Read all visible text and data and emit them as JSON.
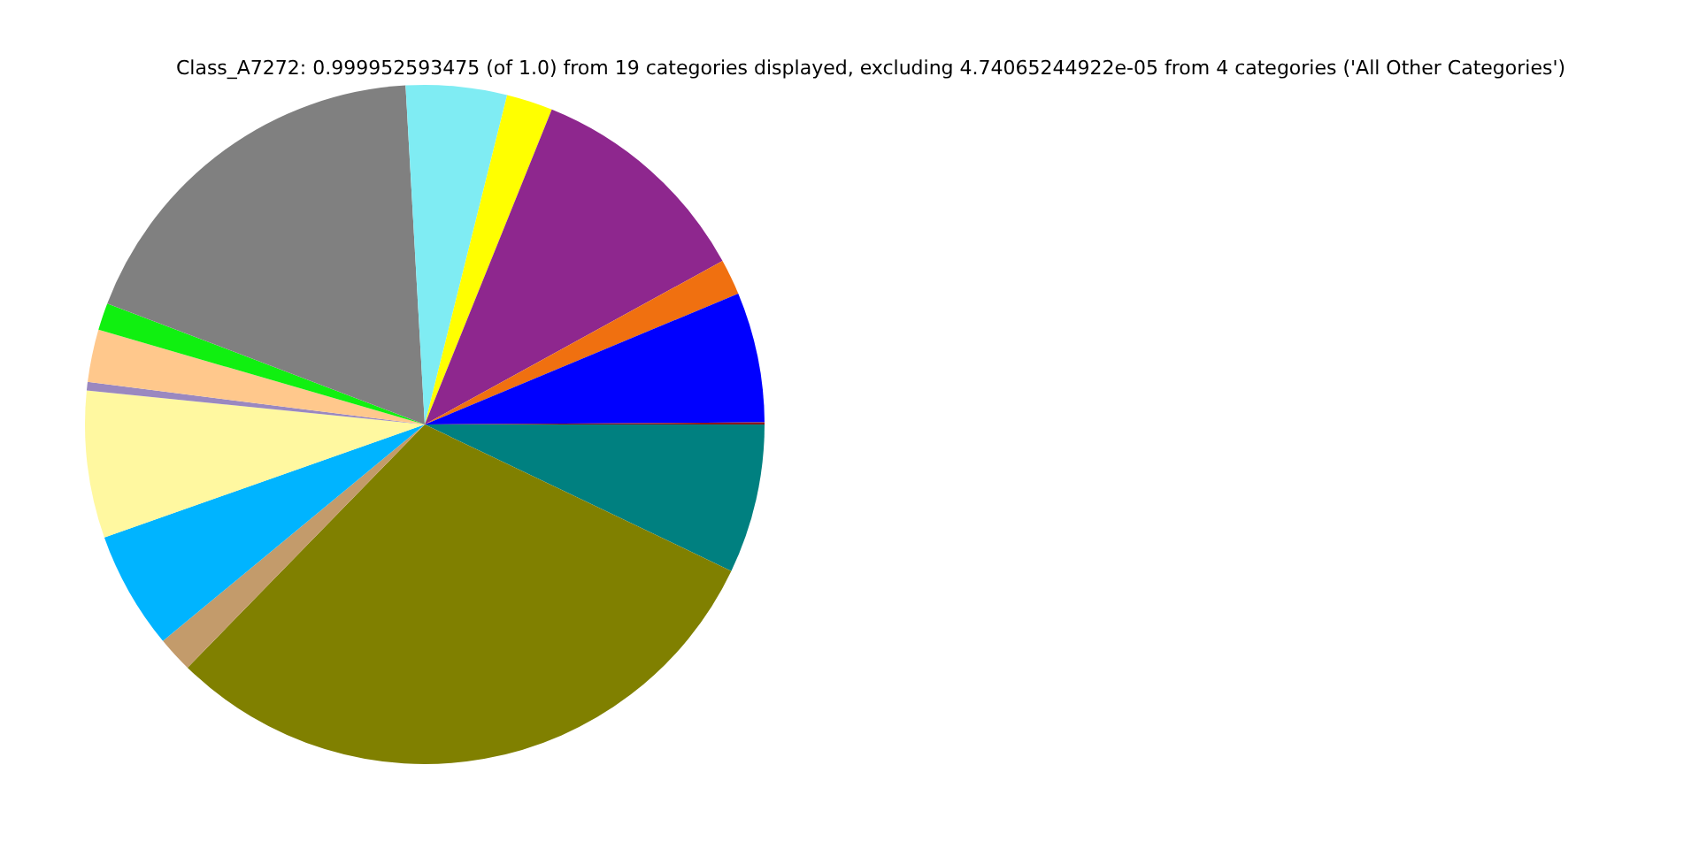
{
  "chart_data": {
    "type": "pie",
    "title": "Class_A7272: 0.999952593475 (of 1.0) from 19 categories displayed, excluding 4.74065244922e-05 from 4 categories ('All Other Categories')",
    "categories": [
      null,
      null,
      null,
      null,
      null,
      null,
      null,
      null,
      null,
      null,
      null,
      null,
      null,
      null,
      null
    ],
    "values": [
      7.1,
      30.2,
      1.7,
      5.6,
      7.0,
      0.4,
      2.5,
      1.3,
      18.3,
      4.8,
      2.2,
      10.9,
      1.7,
      6.2,
      0.1
    ],
    "colors": [
      "#008080",
      "#808000",
      "#c39b6b",
      "#00b4ff",
      "#fff8a0",
      "#9a88c0",
      "#ffc88c",
      "#10f010",
      "#808080",
      "#7fecf3",
      "#ffff00",
      "#8e278e",
      "#f07010",
      "#0000ff",
      "#8b1a1a"
    ],
    "legend": false
  }
}
